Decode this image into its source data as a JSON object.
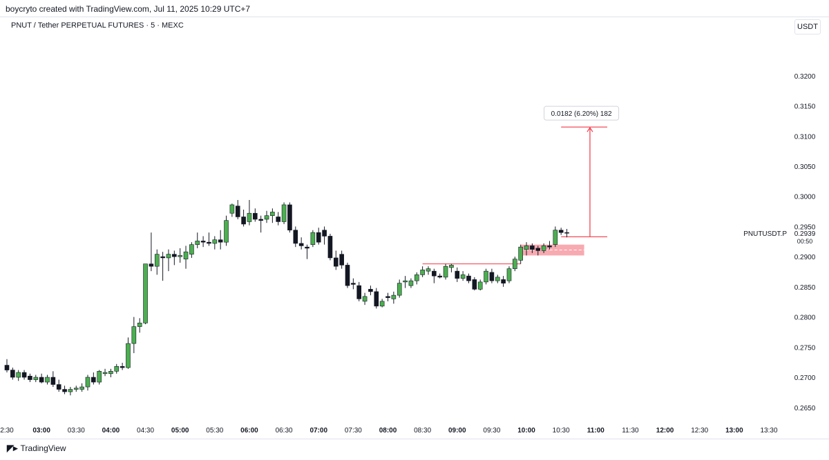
{
  "header": {
    "credit": "boycryto created with TradingView.com, Jul 11, 2025 10:29 UTC+7",
    "symbol": "PNUT / Tether PERPETUAL FUTURES · 5 · MEXC",
    "unit": "USDT"
  },
  "footer": {
    "brand": "TradingView",
    "brand_icon": "tradingview-logo-icon"
  },
  "colors": {
    "up": "#4caf50",
    "down": "#131722",
    "accent": "#f23645",
    "zone": "#f7a1a8"
  },
  "chart_data": {
    "type": "candlestick",
    "interval_minutes": 5,
    "x_start": "02:30",
    "x_end": "13:30",
    "ylim": [
      0.2628,
      0.3257
    ],
    "y_ticks": [
      "0.3200",
      "0.3150",
      "0.3100",
      "0.3050",
      "0.3000",
      "0.2950",
      "0.2900",
      "0.2850",
      "0.2800",
      "0.2750",
      "0.2700",
      "0.2650"
    ],
    "x_ticks": [
      {
        "t": "02:30",
        "label": "2:30",
        "bold": false
      },
      {
        "t": "03:00",
        "label": "03:00",
        "bold": true
      },
      {
        "t": "03:30",
        "label": "03:30",
        "bold": false
      },
      {
        "t": "04:00",
        "label": "04:00",
        "bold": true
      },
      {
        "t": "04:30",
        "label": "04:30",
        "bold": false
      },
      {
        "t": "05:00",
        "label": "05:00",
        "bold": true
      },
      {
        "t": "05:30",
        "label": "05:30",
        "bold": false
      },
      {
        "t": "06:00",
        "label": "06:00",
        "bold": true
      },
      {
        "t": "06:30",
        "label": "06:30",
        "bold": false
      },
      {
        "t": "07:00",
        "label": "07:00",
        "bold": true
      },
      {
        "t": "07:30",
        "label": "07:30",
        "bold": false
      },
      {
        "t": "08:00",
        "label": "08:00",
        "bold": true
      },
      {
        "t": "08:30",
        "label": "08:30",
        "bold": false
      },
      {
        "t": "09:00",
        "label": "09:00",
        "bold": true
      },
      {
        "t": "09:30",
        "label": "09:30",
        "bold": false
      },
      {
        "t": "10:00",
        "label": "10:00",
        "bold": true
      },
      {
        "t": "10:30",
        "label": "10:30",
        "bold": false
      },
      {
        "t": "11:00",
        "label": "11:00",
        "bold": true
      },
      {
        "t": "11:30",
        "label": "11:30",
        "bold": false
      },
      {
        "t": "12:00",
        "label": "12:00",
        "bold": true
      },
      {
        "t": "12:30",
        "label": "12:30",
        "bold": false
      },
      {
        "t": "13:00",
        "label": "13:00",
        "bold": true
      },
      {
        "t": "13:30",
        "label": "13:30",
        "bold": false
      }
    ],
    "candles": [
      {
        "t": "02:30",
        "o": 0.272,
        "h": 0.273,
        "l": 0.2708,
        "c": 0.2712
      },
      {
        "t": "02:35",
        "o": 0.2712,
        "h": 0.2716,
        "l": 0.2696,
        "c": 0.27
      },
      {
        "t": "02:40",
        "o": 0.27,
        "h": 0.2712,
        "l": 0.2694,
        "c": 0.2708
      },
      {
        "t": "02:45",
        "o": 0.2708,
        "h": 0.2712,
        "l": 0.2696,
        "c": 0.27
      },
      {
        "t": "02:50",
        "o": 0.2702,
        "h": 0.2706,
        "l": 0.2692,
        "c": 0.2696
      },
      {
        "t": "02:55",
        "o": 0.2696,
        "h": 0.2704,
        "l": 0.2692,
        "c": 0.27
      },
      {
        "t": "03:00",
        "o": 0.27,
        "h": 0.2706,
        "l": 0.269,
        "c": 0.2692
      },
      {
        "t": "03:05",
        "o": 0.2692,
        "h": 0.2704,
        "l": 0.2688,
        "c": 0.27
      },
      {
        "t": "03:10",
        "o": 0.27,
        "h": 0.271,
        "l": 0.2684,
        "c": 0.2688
      },
      {
        "t": "03:15",
        "o": 0.2688,
        "h": 0.2696,
        "l": 0.2676,
        "c": 0.268
      },
      {
        "t": "03:20",
        "o": 0.268,
        "h": 0.2686,
        "l": 0.2672,
        "c": 0.2676
      },
      {
        "t": "03:25",
        "o": 0.2676,
        "h": 0.2684,
        "l": 0.267,
        "c": 0.268
      },
      {
        "t": "03:30",
        "o": 0.268,
        "h": 0.2686,
        "l": 0.2676,
        "c": 0.2682
      },
      {
        "t": "03:35",
        "o": 0.268,
        "h": 0.269,
        "l": 0.2676,
        "c": 0.2684
      },
      {
        "t": "03:40",
        "o": 0.2684,
        "h": 0.2704,
        "l": 0.2678,
        "c": 0.27
      },
      {
        "t": "03:45",
        "o": 0.27,
        "h": 0.2708,
        "l": 0.2688,
        "c": 0.2692
      },
      {
        "t": "03:50",
        "o": 0.2692,
        "h": 0.2712,
        "l": 0.2688,
        "c": 0.271
      },
      {
        "t": "03:55",
        "o": 0.2706,
        "h": 0.2714,
        "l": 0.2702,
        "c": 0.2708
      },
      {
        "t": "04:00",
        "o": 0.2706,
        "h": 0.2714,
        "l": 0.27,
        "c": 0.271
      },
      {
        "t": "04:05",
        "o": 0.271,
        "h": 0.2722,
        "l": 0.2706,
        "c": 0.2718
      },
      {
        "t": "04:10",
        "o": 0.2718,
        "h": 0.2724,
        "l": 0.2712,
        "c": 0.2716
      },
      {
        "t": "04:15",
        "o": 0.2716,
        "h": 0.2766,
        "l": 0.2714,
        "c": 0.2756
      },
      {
        "t": "04:20",
        "o": 0.2756,
        "h": 0.28,
        "l": 0.274,
        "c": 0.2784
      },
      {
        "t": "04:25",
        "o": 0.2784,
        "h": 0.2798,
        "l": 0.2774,
        "c": 0.279
      },
      {
        "t": "04:30",
        "o": 0.279,
        "h": 0.2886,
        "l": 0.2788,
        "c": 0.2888
      },
      {
        "t": "04:35",
        "o": 0.2888,
        "h": 0.294,
        "l": 0.2876,
        "c": 0.2884
      },
      {
        "t": "04:40",
        "o": 0.2884,
        "h": 0.2912,
        "l": 0.287,
        "c": 0.2904
      },
      {
        "t": "04:45",
        "o": 0.29,
        "h": 0.2908,
        "l": 0.286,
        "c": 0.2898
      },
      {
        "t": "04:50",
        "o": 0.2898,
        "h": 0.2912,
        "l": 0.2876,
        "c": 0.2904
      },
      {
        "t": "04:55",
        "o": 0.2904,
        "h": 0.291,
        "l": 0.2886,
        "c": 0.29
      },
      {
        "t": "05:00",
        "o": 0.29,
        "h": 0.2914,
        "l": 0.289,
        "c": 0.2902
      },
      {
        "t": "05:05",
        "o": 0.2896,
        "h": 0.2918,
        "l": 0.288,
        "c": 0.2908
      },
      {
        "t": "05:10",
        "o": 0.2904,
        "h": 0.2924,
        "l": 0.2898,
        "c": 0.292
      },
      {
        "t": "05:15",
        "o": 0.292,
        "h": 0.294,
        "l": 0.2914,
        "c": 0.2926
      },
      {
        "t": "05:20",
        "o": 0.2926,
        "h": 0.2934,
        "l": 0.2916,
        "c": 0.2924
      },
      {
        "t": "05:25",
        "o": 0.2924,
        "h": 0.294,
        "l": 0.2918,
        "c": 0.2922
      },
      {
        "t": "05:30",
        "o": 0.2922,
        "h": 0.2934,
        "l": 0.2912,
        "c": 0.2928
      },
      {
        "t": "05:35",
        "o": 0.2928,
        "h": 0.2944,
        "l": 0.2912,
        "c": 0.2924
      },
      {
        "t": "05:40",
        "o": 0.2924,
        "h": 0.2968,
        "l": 0.2918,
        "c": 0.296
      },
      {
        "t": "05:45",
        "o": 0.2972,
        "h": 0.2988,
        "l": 0.2966,
        "c": 0.2986
      },
      {
        "t": "05:50",
        "o": 0.2984,
        "h": 0.2994,
        "l": 0.2962,
        "c": 0.2966
      },
      {
        "t": "05:55",
        "o": 0.2966,
        "h": 0.2978,
        "l": 0.295,
        "c": 0.2954
      },
      {
        "t": "06:00",
        "o": 0.2958,
        "h": 0.2994,
        "l": 0.2952,
        "c": 0.2972
      },
      {
        "t": "06:05",
        "o": 0.2972,
        "h": 0.298,
        "l": 0.2958,
        "c": 0.2962
      },
      {
        "t": "06:10",
        "o": 0.2962,
        "h": 0.2968,
        "l": 0.294,
        "c": 0.296
      },
      {
        "t": "06:15",
        "o": 0.2962,
        "h": 0.2976,
        "l": 0.2956,
        "c": 0.2968
      },
      {
        "t": "06:20",
        "o": 0.2968,
        "h": 0.298,
        "l": 0.2956,
        "c": 0.2974
      },
      {
        "t": "06:25",
        "o": 0.2966,
        "h": 0.2974,
        "l": 0.2952,
        "c": 0.2958
      },
      {
        "t": "06:30",
        "o": 0.2958,
        "h": 0.299,
        "l": 0.2954,
        "c": 0.2986
      },
      {
        "t": "06:35",
        "o": 0.2986,
        "h": 0.299,
        "l": 0.294,
        "c": 0.2944
      },
      {
        "t": "06:40",
        "o": 0.2944,
        "h": 0.295,
        "l": 0.2916,
        "c": 0.2922
      },
      {
        "t": "06:45",
        "o": 0.2922,
        "h": 0.2932,
        "l": 0.2912,
        "c": 0.2918
      },
      {
        "t": "06:50",
        "o": 0.2916,
        "h": 0.292,
        "l": 0.2896,
        "c": 0.2914
      },
      {
        "t": "06:55",
        "o": 0.292,
        "h": 0.2944,
        "l": 0.2916,
        "c": 0.294
      },
      {
        "t": "07:00",
        "o": 0.294,
        "h": 0.2948,
        "l": 0.292,
        "c": 0.2924
      },
      {
        "t": "07:05",
        "o": 0.2944,
        "h": 0.295,
        "l": 0.292,
        "c": 0.2934
      },
      {
        "t": "07:10",
        "o": 0.2934,
        "h": 0.2938,
        "l": 0.2894,
        "c": 0.2898
      },
      {
        "t": "07:15",
        "o": 0.2898,
        "h": 0.291,
        "l": 0.2878,
        "c": 0.2884
      },
      {
        "t": "07:20",
        "o": 0.2904,
        "h": 0.291,
        "l": 0.288,
        "c": 0.2886
      },
      {
        "t": "07:25",
        "o": 0.2886,
        "h": 0.289,
        "l": 0.2848,
        "c": 0.2852
      },
      {
        "t": "07:30",
        "o": 0.2856,
        "h": 0.2864,
        "l": 0.2846,
        "c": 0.2854
      },
      {
        "t": "07:35",
        "o": 0.2852,
        "h": 0.2858,
        "l": 0.2826,
        "c": 0.283
      },
      {
        "t": "07:40",
        "o": 0.2826,
        "h": 0.284,
        "l": 0.282,
        "c": 0.2834
      },
      {
        "t": "07:45",
        "o": 0.2846,
        "h": 0.2852,
        "l": 0.2836,
        "c": 0.2842
      },
      {
        "t": "07:50",
        "o": 0.2842,
        "h": 0.2848,
        "l": 0.2814,
        "c": 0.2818
      },
      {
        "t": "07:55",
        "o": 0.2818,
        "h": 0.283,
        "l": 0.2816,
        "c": 0.2826
      },
      {
        "t": "08:00",
        "o": 0.2834,
        "h": 0.284,
        "l": 0.2826,
        "c": 0.2832
      },
      {
        "t": "08:05",
        "o": 0.283,
        "h": 0.2842,
        "l": 0.2822,
        "c": 0.2836
      },
      {
        "t": "08:10",
        "o": 0.2836,
        "h": 0.2862,
        "l": 0.2832,
        "c": 0.2856
      },
      {
        "t": "08:15",
        "o": 0.2858,
        "h": 0.2868,
        "l": 0.2848,
        "c": 0.286
      },
      {
        "t": "08:20",
        "o": 0.2852,
        "h": 0.2864,
        "l": 0.2848,
        "c": 0.286
      },
      {
        "t": "08:25",
        "o": 0.286,
        "h": 0.2874,
        "l": 0.2854,
        "c": 0.287
      },
      {
        "t": "08:30",
        "o": 0.287,
        "h": 0.2884,
        "l": 0.2866,
        "c": 0.2878
      },
      {
        "t": "08:35",
        "o": 0.2876,
        "h": 0.2884,
        "l": 0.287,
        "c": 0.288
      },
      {
        "t": "08:40",
        "o": 0.2876,
        "h": 0.288,
        "l": 0.2856,
        "c": 0.2868
      },
      {
        "t": "08:45",
        "o": 0.2868,
        "h": 0.2872,
        "l": 0.2864,
        "c": 0.2866
      },
      {
        "t": "08:50",
        "o": 0.2866,
        "h": 0.2888,
        "l": 0.2862,
        "c": 0.2884
      },
      {
        "t": "08:55",
        "o": 0.2882,
        "h": 0.2888,
        "l": 0.2874,
        "c": 0.2886
      },
      {
        "t": "09:00",
        "o": 0.2876,
        "h": 0.2882,
        "l": 0.2858,
        "c": 0.2864
      },
      {
        "t": "09:05",
        "o": 0.2864,
        "h": 0.2876,
        "l": 0.286,
        "c": 0.287
      },
      {
        "t": "09:10",
        "o": 0.2868,
        "h": 0.2872,
        "l": 0.2856,
        "c": 0.286
      },
      {
        "t": "09:15",
        "o": 0.2862,
        "h": 0.2866,
        "l": 0.2844,
        "c": 0.2846
      },
      {
        "t": "09:20",
        "o": 0.2846,
        "h": 0.2862,
        "l": 0.2844,
        "c": 0.2858
      },
      {
        "t": "09:25",
        "o": 0.2858,
        "h": 0.288,
        "l": 0.2854,
        "c": 0.2876
      },
      {
        "t": "09:30",
        "o": 0.2874,
        "h": 0.288,
        "l": 0.2856,
        "c": 0.286
      },
      {
        "t": "09:35",
        "o": 0.286,
        "h": 0.287,
        "l": 0.2856,
        "c": 0.2866
      },
      {
        "t": "09:40",
        "o": 0.2862,
        "h": 0.2868,
        "l": 0.285,
        "c": 0.2856
      },
      {
        "t": "09:45",
        "o": 0.286,
        "h": 0.2884,
        "l": 0.2856,
        "c": 0.288
      },
      {
        "t": "09:50",
        "o": 0.288,
        "h": 0.29,
        "l": 0.2876,
        "c": 0.2896
      },
      {
        "t": "09:55",
        "o": 0.2894,
        "h": 0.292,
        "l": 0.2888,
        "c": 0.2916
      },
      {
        "t": "10:00",
        "o": 0.2912,
        "h": 0.2924,
        "l": 0.2902,
        "c": 0.2918
      },
      {
        "t": "10:05",
        "o": 0.2918,
        "h": 0.2922,
        "l": 0.2906,
        "c": 0.2912
      },
      {
        "t": "10:10",
        "o": 0.2914,
        "h": 0.2918,
        "l": 0.2902,
        "c": 0.291
      },
      {
        "t": "10:15",
        "o": 0.291,
        "h": 0.2922,
        "l": 0.2906,
        "c": 0.2918
      },
      {
        "t": "10:20",
        "o": 0.2918,
        "h": 0.2926,
        "l": 0.2912,
        "c": 0.2916
      },
      {
        "t": "10:25",
        "o": 0.292,
        "h": 0.295,
        "l": 0.2916,
        "c": 0.2944
      },
      {
        "t": "10:30",
        "o": 0.2944,
        "h": 0.2948,
        "l": 0.2936,
        "c": 0.294
      },
      {
        "t": "10:35",
        "o": 0.294,
        "h": 0.2946,
        "l": 0.2932,
        "c": 0.2939
      }
    ],
    "annotations": {
      "zone": {
        "t_start": "09:55",
        "t_end": "10:50",
        "y_high": 0.292,
        "y_low": 0.2902,
        "y_mid": 0.2911
      },
      "support_line": {
        "t_start": "08:30",
        "t_end": "09:55",
        "y": 0.2888
      },
      "measure": {
        "t_start": "10:30",
        "t_end": "11:10",
        "t_arrow": "10:55",
        "y_from": 0.2933,
        "y_to": 0.3115,
        "label": "0.0182 (6.20%) 182"
      },
      "last_price": {
        "symbol": "PNUTUSDT.P",
        "price": "0.2939",
        "countdown": "00:50",
        "y": 0.2939
      }
    }
  }
}
